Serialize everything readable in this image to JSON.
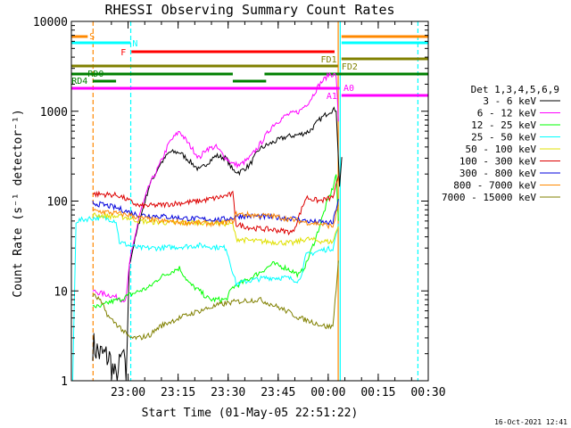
{
  "chart_data": {
    "type": "line",
    "title": "RHESSI Observing Summary Count Rates",
    "xlabel": "Start Time (01-May-05 22:51:22)",
    "ylabel": "Count Rate (s⁻¹ detector⁻¹)",
    "ylog": true,
    "ylim": [
      1,
      10000
    ],
    "xlim_min": [
      -8.4,
      98.6
    ],
    "x_unit": "minutes after 22:51:22",
    "x_ticks": [
      {
        "label": "23:00",
        "v": 8.6
      },
      {
        "label": "23:15",
        "v": 23.6
      },
      {
        "label": "23:30",
        "v": 38.6
      },
      {
        "label": "23:45",
        "v": 53.6
      },
      {
        "label": "00:00",
        "v": 68.6
      },
      {
        "label": "00:15",
        "v": 83.6
      },
      {
        "label": "00:30",
        "v": 98.6
      }
    ],
    "y_ticks": [
      {
        "label": "1",
        "v": 1
      },
      {
        "label": "10",
        "v": 10
      },
      {
        "label": "100",
        "v": 100
      },
      {
        "label": "1000",
        "v": 1000
      },
      {
        "label": "10000",
        "v": 10000
      }
    ],
    "legend_title": "Det 1,3,4,5,6,9",
    "series": [
      {
        "name": "3 - 6 keV",
        "color": "#000000",
        "points": [
          [
            -2,
            2.5
          ],
          [
            0,
            2
          ],
          [
            3,
            1.8
          ],
          [
            5,
            1
          ],
          [
            7,
            2
          ],
          [
            8,
            1
          ],
          [
            9,
            20
          ],
          [
            12,
            60
          ],
          [
            15,
            150
          ],
          [
            18,
            250
          ],
          [
            21,
            350
          ],
          [
            24,
            350
          ],
          [
            27,
            280
          ],
          [
            30,
            220
          ],
          [
            32,
            260
          ],
          [
            35,
            320
          ],
          [
            38,
            300
          ],
          [
            40,
            220
          ],
          [
            42,
            210
          ],
          [
            45,
            250
          ],
          [
            48,
            380
          ],
          [
            52,
            450
          ],
          [
            56,
            520
          ],
          [
            60,
            550
          ],
          [
            63,
            600
          ],
          [
            66,
            800
          ],
          [
            69,
            1000
          ],
          [
            71,
            1050
          ],
          [
            72,
            150
          ],
          [
            73,
            400
          ]
        ]
      },
      {
        "name": "6 - 12 keV",
        "color": "#ff00ff",
        "points": [
          [
            -2,
            10
          ],
          [
            0,
            9.5
          ],
          [
            3,
            9
          ],
          [
            5,
            8.5
          ],
          [
            7,
            8
          ],
          [
            8,
            8
          ],
          [
            9,
            20
          ],
          [
            12,
            70
          ],
          [
            15,
            150
          ],
          [
            18,
            250
          ],
          [
            21,
            450
          ],
          [
            24,
            600
          ],
          [
            27,
            420
          ],
          [
            30,
            300
          ],
          [
            32,
            380
          ],
          [
            35,
            400
          ],
          [
            38,
            300
          ],
          [
            40,
            260
          ],
          [
            42,
            250
          ],
          [
            45,
            300
          ],
          [
            48,
            420
          ],
          [
            52,
            700
          ],
          [
            56,
            900
          ],
          [
            60,
            1000
          ],
          [
            63,
            1300
          ],
          [
            66,
            2000
          ],
          [
            69,
            2600
          ],
          [
            71,
            2500
          ],
          [
            72,
            400
          ]
        ]
      },
      {
        "name": "12 - 25 keV",
        "color": "#00ff00",
        "points": [
          [
            -2,
            7
          ],
          [
            0,
            6.5
          ],
          [
            3,
            7.5
          ],
          [
            6,
            8
          ],
          [
            9,
            9
          ],
          [
            12,
            10
          ],
          [
            15,
            11
          ],
          [
            18,
            14
          ],
          [
            21,
            16
          ],
          [
            24,
            18
          ],
          [
            27,
            12
          ],
          [
            30,
            10
          ],
          [
            33,
            8
          ],
          [
            38,
            8
          ],
          [
            40,
            11
          ],
          [
            44,
            13
          ],
          [
            48,
            16
          ],
          [
            52,
            20
          ],
          [
            56,
            18
          ],
          [
            60,
            15
          ],
          [
            62,
            20
          ],
          [
            65,
            40
          ],
          [
            68,
            90
          ],
          [
            70,
            140
          ],
          [
            71,
            200
          ],
          [
            72,
            30
          ]
        ]
      },
      {
        "name": "25 - 50 keV",
        "color": "#00ffff",
        "points": [
          [
            -8,
            1
          ],
          [
            -7,
            60
          ],
          [
            -5,
            62
          ],
          [
            -3,
            64
          ],
          [
            0,
            65
          ],
          [
            3,
            63
          ],
          [
            5,
            60
          ],
          [
            6,
            35
          ],
          [
            9,
            32
          ],
          [
            12,
            30
          ],
          [
            18,
            30
          ],
          [
            24,
            31
          ],
          [
            30,
            32
          ],
          [
            38,
            30
          ],
          [
            41,
            12
          ],
          [
            45,
            13
          ],
          [
            50,
            14
          ],
          [
            56,
            14
          ],
          [
            60,
            13
          ],
          [
            62,
            25
          ],
          [
            66,
            28
          ],
          [
            70,
            30
          ],
          [
            72,
            60
          ]
        ]
      },
      {
        "name": "50 - 100 keV",
        "color": "#e0e000",
        "points": [
          [
            -2,
            70
          ],
          [
            3,
            68
          ],
          [
            8,
            66
          ],
          [
            12,
            60
          ],
          [
            18,
            58
          ],
          [
            24,
            57
          ],
          [
            30,
            58
          ],
          [
            36,
            57
          ],
          [
            40,
            55
          ],
          [
            41,
            38
          ],
          [
            46,
            36
          ],
          [
            52,
            35
          ],
          [
            58,
            34
          ],
          [
            62,
            38
          ],
          [
            66,
            36
          ],
          [
            70,
            35
          ],
          [
            72,
            60
          ]
        ]
      },
      {
        "name": "100 - 300 keV",
        "color": "#dd0000",
        "points": [
          [
            -2,
            120
          ],
          [
            3,
            118
          ],
          [
            6,
            115
          ],
          [
            9,
            100
          ],
          [
            12,
            88
          ],
          [
            18,
            90
          ],
          [
            24,
            95
          ],
          [
            30,
            100
          ],
          [
            36,
            110
          ],
          [
            40,
            120
          ],
          [
            41,
            55
          ],
          [
            46,
            50
          ],
          [
            52,
            48
          ],
          [
            58,
            45
          ],
          [
            62,
            110
          ],
          [
            66,
            100
          ],
          [
            70,
            110
          ],
          [
            72,
            200
          ]
        ]
      },
      {
        "name": "300 - 800 keV",
        "color": "#0000dd",
        "points": [
          [
            -2,
            95
          ],
          [
            3,
            88
          ],
          [
            6,
            82
          ],
          [
            9,
            75
          ],
          [
            12,
            70
          ],
          [
            18,
            68
          ],
          [
            24,
            65
          ],
          [
            30,
            63
          ],
          [
            36,
            62
          ],
          [
            40,
            65
          ],
          [
            41,
            68
          ],
          [
            46,
            68
          ],
          [
            52,
            66
          ],
          [
            58,
            64
          ],
          [
            62,
            60
          ],
          [
            66,
            58
          ],
          [
            70,
            57
          ],
          [
            72,
            120
          ]
        ]
      },
      {
        "name": "800 - 7000 keV",
        "color": "#ff8800",
        "points": [
          [
            -2,
            78
          ],
          [
            3,
            75
          ],
          [
            6,
            72
          ],
          [
            9,
            70
          ],
          [
            12,
            65
          ],
          [
            18,
            60
          ],
          [
            24,
            58
          ],
          [
            30,
            57
          ],
          [
            36,
            56
          ],
          [
            40,
            60
          ],
          [
            41,
            72
          ],
          [
            46,
            70
          ],
          [
            52,
            68
          ],
          [
            58,
            62
          ],
          [
            62,
            58
          ],
          [
            66,
            56
          ],
          [
            70,
            52
          ],
          [
            72,
            100
          ]
        ]
      },
      {
        "name": "7000 - 15000 keV",
        "color": "#808000",
        "points": [
          [
            -2,
            9
          ],
          [
            0,
            8
          ],
          [
            3,
            5
          ],
          [
            6,
            4
          ],
          [
            9,
            3
          ],
          [
            12,
            3
          ],
          [
            15,
            3.2
          ],
          [
            18,
            4
          ],
          [
            21,
            4.5
          ],
          [
            24,
            5
          ],
          [
            27,
            5.5
          ],
          [
            30,
            6
          ],
          [
            33,
            6.5
          ],
          [
            36,
            7
          ],
          [
            40,
            7.5
          ],
          [
            44,
            7.8
          ],
          [
            48,
            8
          ],
          [
            52,
            7
          ],
          [
            56,
            6
          ],
          [
            60,
            5
          ],
          [
            64,
            4.5
          ],
          [
            68,
            4
          ],
          [
            70,
            4
          ],
          [
            72,
            30
          ]
        ]
      }
    ],
    "state_bars": [
      {
        "name": "S",
        "color": "#ff8800"
      },
      {
        "name": "N",
        "color": "#00ffff"
      },
      {
        "name": "F",
        "color": "#ff0000"
      },
      {
        "name": "FD1",
        "color": "#808000"
      },
      {
        "name": "RD0",
        "color": "#008000"
      },
      {
        "name": "RD4",
        "color": "#008000"
      },
      {
        "name": "FD2",
        "color": "#808000"
      },
      {
        "name": "A1",
        "color": "#ff00ff"
      },
      {
        "name": "A0",
        "color": "#ff00ff"
      }
    ],
    "vertical_markers": [
      {
        "v": -1.9,
        "color": "#ff8800"
      },
      {
        "v": 9.4,
        "color": "#00ffff"
      },
      {
        "v": 71.6,
        "color": "#ff8800"
      },
      {
        "v": 72.2,
        "color": "#00ffff"
      },
      {
        "v": 95.5,
        "color": "#00ffff"
      }
    ],
    "footer_date": "16-Oct-2021 12:41"
  }
}
